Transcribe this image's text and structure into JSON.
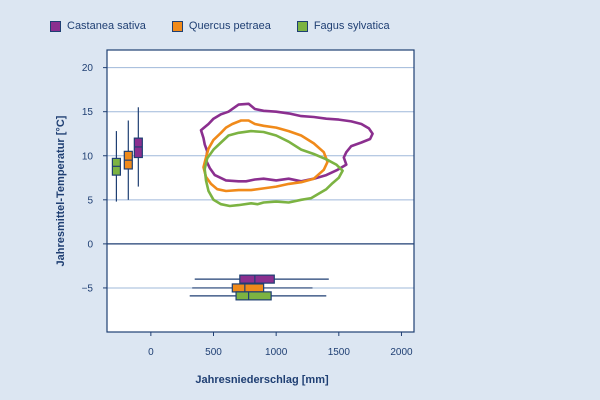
{
  "chart_data": {
    "type": "contour",
    "xlabel": "Jahresniederschlag [mm]",
    "ylabel": "Jahresmittel-Temperatur [°C]",
    "xlim": [
      -350,
      2100
    ],
    "ylim": [
      -10,
      22
    ],
    "x_ticks": [
      0,
      500,
      1000,
      1500,
      2000
    ],
    "y_ticks": [
      -5,
      0,
      5,
      10,
      15,
      20
    ],
    "x_tick_labels": [
      "0",
      "500",
      "1000",
      "1500",
      "2000"
    ],
    "y_tick_labels": [
      "−5",
      "0",
      "5",
      "10",
      "15",
      "20"
    ],
    "grid": "horizontal",
    "legend_position": "top",
    "series": [
      {
        "name": "Castanea sativa",
        "color": "#8b2f8f",
        "contour": [
          [
            620,
            15
          ],
          [
            700,
            15.8
          ],
          [
            780,
            15.9
          ],
          [
            830,
            15.3
          ],
          [
            900,
            15.1
          ],
          [
            1000,
            15.0
          ],
          [
            1100,
            14.8
          ],
          [
            1200,
            14.5
          ],
          [
            1300,
            14.4
          ],
          [
            1400,
            14.2
          ],
          [
            1500,
            14.1
          ],
          [
            1600,
            13.9
          ],
          [
            1680,
            13.6
          ],
          [
            1740,
            13.1
          ],
          [
            1770,
            12.5
          ],
          [
            1750,
            11.9
          ],
          [
            1680,
            11.5
          ],
          [
            1600,
            11.1
          ],
          [
            1560,
            10.4
          ],
          [
            1540,
            9.8
          ],
          [
            1560,
            9.0
          ],
          [
            1490,
            8.4
          ],
          [
            1400,
            7.8
          ],
          [
            1300,
            7.4
          ],
          [
            1200,
            7.1
          ],
          [
            1100,
            7.4
          ],
          [
            1000,
            7.2
          ],
          [
            900,
            7.4
          ],
          [
            830,
            7.3
          ],
          [
            760,
            7.1
          ],
          [
            700,
            7.1
          ],
          [
            600,
            7.2
          ],
          [
            510,
            7.8
          ],
          [
            470,
            8.6
          ],
          [
            440,
            9.5
          ],
          [
            450,
            10.5
          ],
          [
            430,
            11.3
          ],
          [
            420,
            12.0
          ],
          [
            400,
            12.9
          ],
          [
            460,
            13.6
          ],
          [
            500,
            14.2
          ],
          [
            560,
            14.7
          ],
          [
            620,
            15
          ]
        ],
        "box_temp": {
          "min": 6.5,
          "q1": 9.8,
          "median": 11.0,
          "q3": 12.0,
          "max": 15.5
        },
        "box_precip": {
          "min": 350,
          "q1": 710,
          "median": 830,
          "q3": 985,
          "max": 1420
        }
      },
      {
        "name": "Quercus petraea",
        "color": "#f08a1a",
        "contour": [
          [
            650,
            13.6
          ],
          [
            720,
            14.0
          ],
          [
            780,
            14.0
          ],
          [
            830,
            13.6
          ],
          [
            900,
            13.4
          ],
          [
            1000,
            13.2
          ],
          [
            1100,
            12.8
          ],
          [
            1200,
            12.3
          ],
          [
            1300,
            11.4
          ],
          [
            1380,
            10.4
          ],
          [
            1410,
            9.3
          ],
          [
            1380,
            8.4
          ],
          [
            1300,
            7.4
          ],
          [
            1200,
            7.0
          ],
          [
            1100,
            6.8
          ],
          [
            1000,
            6.5
          ],
          [
            900,
            6.3
          ],
          [
            800,
            6.1
          ],
          [
            700,
            6.1
          ],
          [
            600,
            6.0
          ],
          [
            530,
            6.2
          ],
          [
            480,
            6.8
          ],
          [
            440,
            7.6
          ],
          [
            420,
            8.7
          ],
          [
            440,
            9.8
          ],
          [
            460,
            10.8
          ],
          [
            500,
            11.8
          ],
          [
            560,
            12.6
          ],
          [
            600,
            13.2
          ],
          [
            650,
            13.6
          ]
        ],
        "box_temp": {
          "min": 5.0,
          "q1": 8.5,
          "median": 9.5,
          "q3": 10.5,
          "max": 14.0
        },
        "box_precip": {
          "min": 330,
          "q1": 650,
          "median": 750,
          "q3": 900,
          "max": 1290
        }
      },
      {
        "name": "Fagus sylvatica",
        "color": "#7cb342",
        "contour": [
          [
            620,
            12.3
          ],
          [
            700,
            12.6
          ],
          [
            800,
            12.8
          ],
          [
            900,
            12.7
          ],
          [
            1000,
            12.3
          ],
          [
            1100,
            11.6
          ],
          [
            1200,
            10.7
          ],
          [
            1300,
            10.2
          ],
          [
            1400,
            9.6
          ],
          [
            1480,
            9.0
          ],
          [
            1530,
            8.3
          ],
          [
            1500,
            7.5
          ],
          [
            1450,
            6.9
          ],
          [
            1400,
            6.2
          ],
          [
            1340,
            5.7
          ],
          [
            1280,
            5.2
          ],
          [
            1200,
            5.0
          ],
          [
            1100,
            4.7
          ],
          [
            1000,
            4.8
          ],
          [
            900,
            4.7
          ],
          [
            850,
            4.5
          ],
          [
            800,
            4.6
          ],
          [
            700,
            4.4
          ],
          [
            630,
            4.3
          ],
          [
            560,
            4.5
          ],
          [
            500,
            5.0
          ],
          [
            460,
            6.0
          ],
          [
            440,
            7.2
          ],
          [
            430,
            8.5
          ],
          [
            450,
            9.7
          ],
          [
            500,
            10.7
          ],
          [
            560,
            11.5
          ],
          [
            620,
            12.3
          ]
        ],
        "box_temp": {
          "min": 4.8,
          "q1": 7.8,
          "median": 8.8,
          "q3": 9.7,
          "max": 12.8
        },
        "box_precip": {
          "min": 310,
          "q1": 680,
          "median": 780,
          "q3": 960,
          "max": 1400
        }
      }
    ]
  }
}
